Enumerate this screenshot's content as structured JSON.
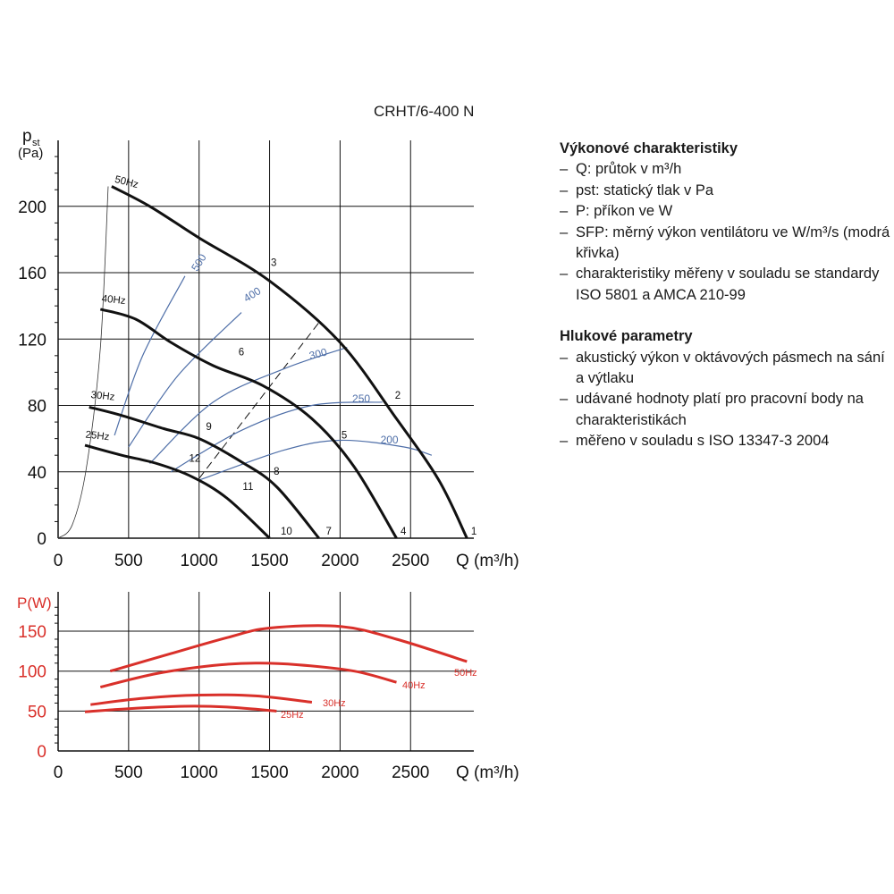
{
  "model": "CRHT/6-400 N",
  "info": {
    "perf_heading": "Výkonové charakteristiky",
    "perf_items": [
      "Q: průtok v m³/h",
      "pst: statický tlak v Pa",
      "P: příkon ve W",
      "SFP: měrný výkon ventilátoru ve W/m³/s (modrá křivka)",
      "charakteristiky měřeny v souladu se standardy ISO 5801 a AMCA 210-99"
    ],
    "noise_heading": "Hlukové parametry",
    "noise_items": [
      "akustický výkon v oktávových pásmech na sání a výtlaku",
      "udávané hodnoty platí pro pracovní body na charakteristikách",
      "měřeno v souladu s ISO 13347-3 2004"
    ]
  },
  "colors": {
    "fan_curve": "#111111",
    "sfp_curve": "#4f6fa8",
    "power_curve": "#d9302a",
    "axis": "#111111",
    "grid": "#111111"
  },
  "chart_data": [
    {
      "type": "line",
      "ylabel": "pst",
      "yunit": "(Pa)",
      "xlabel": "Q (m³/h)",
      "xlim": [
        0,
        3000
      ],
      "ylim": [
        0,
        240
      ],
      "xticks": [
        0,
        500,
        1000,
        1500,
        2000,
        2500
      ],
      "yticks": [
        0,
        40,
        80,
        120,
        160,
        200
      ],
      "grid": true,
      "series": [
        {
          "name": "50Hz",
          "kind": "fan",
          "points": [
            [
              380,
              212
            ],
            [
              650,
              200
            ],
            [
              1000,
              181
            ],
            [
              1500,
              155
            ],
            [
              2000,
              118
            ],
            [
              2400,
              72
            ],
            [
              2700,
              35
            ],
            [
              2900,
              0
            ]
          ]
        },
        {
          "name": "40Hz",
          "kind": "fan",
          "points": [
            [
              300,
              138
            ],
            [
              550,
              132
            ],
            [
              800,
              118
            ],
            [
              1100,
              104
            ],
            [
              1450,
              92
            ],
            [
              1800,
              72
            ],
            [
              2100,
              43
            ],
            [
              2400,
              0
            ]
          ]
        },
        {
          "name": "30Hz",
          "kind": "fan",
          "points": [
            [
              220,
              79
            ],
            [
              450,
              74
            ],
            [
              750,
              66
            ],
            [
              1000,
              60
            ],
            [
              1300,
              46
            ],
            [
              1550,
              31
            ],
            [
              1850,
              0
            ]
          ]
        },
        {
          "name": "25Hz",
          "kind": "fan",
          "points": [
            [
              190,
              56
            ],
            [
              450,
              50
            ],
            [
              700,
              45
            ],
            [
              950,
              37
            ],
            [
              1200,
              24
            ],
            [
              1500,
              0
            ]
          ]
        },
        {
          "name": "500",
          "kind": "sfp",
          "points": [
            [
              400,
              62
            ],
            [
              600,
              110
            ],
            [
              900,
              158
            ]
          ]
        },
        {
          "name": "400",
          "kind": "sfp",
          "points": [
            [
              500,
              55
            ],
            [
              850,
              98
            ],
            [
              1300,
              136
            ]
          ]
        },
        {
          "name": "300",
          "kind": "sfp",
          "points": [
            [
              650,
              45
            ],
            [
              1100,
              82
            ],
            [
              1600,
              102
            ],
            [
              2050,
              115
            ]
          ]
        },
        {
          "name": "250",
          "kind": "sfp",
          "points": [
            [
              800,
              40
            ],
            [
              1300,
              65
            ],
            [
              1800,
              80
            ],
            [
              2300,
              82
            ]
          ]
        },
        {
          "name": "200",
          "kind": "sfp",
          "points": [
            [
              1000,
              35
            ],
            [
              1600,
              53
            ],
            [
              2000,
              59
            ],
            [
              2450,
              55
            ],
            [
              2650,
              50
            ]
          ]
        }
      ],
      "system_curve": [
        [
          0,
          0
        ],
        [
          100,
          8
        ],
        [
          200,
          42
        ],
        [
          300,
          115
        ],
        [
          355,
          212
        ]
      ],
      "dashed_line": [
        [
          1000,
          36
        ],
        [
          1850,
          130
        ]
      ],
      "operating_points": [
        {
          "label": "1",
          "q": 2910,
          "p": 0
        },
        {
          "label": "2",
          "q": 2370,
          "p": 82
        },
        {
          "label": "3",
          "q": 1490,
          "p": 162
        },
        {
          "label": "4",
          "q": 2410,
          "p": 0
        },
        {
          "label": "5",
          "q": 1990,
          "p": 58
        },
        {
          "label": "6",
          "q": 1260,
          "p": 108
        },
        {
          "label": "7",
          "q": 1880,
          "p": 0
        },
        {
          "label": "8",
          "q": 1510,
          "p": 36
        },
        {
          "label": "9",
          "q": 1030,
          "p": 63
        },
        {
          "label": "10",
          "q": 1560,
          "p": 0
        },
        {
          "label": "11",
          "q": 1290,
          "p": 27
        },
        {
          "label": "12",
          "q": 910,
          "p": 44
        }
      ]
    },
    {
      "type": "line",
      "ylabel": "P(W)",
      "xlabel": "Q (m³/h)",
      "xlim": [
        0,
        3000
      ],
      "ylim": [
        0,
        190
      ],
      "xticks": [
        0,
        500,
        1000,
        1500,
        2000,
        2500
      ],
      "yticks": [
        0,
        50,
        100,
        150
      ],
      "grid": true,
      "series": [
        {
          "name": "50Hz",
          "points": [
            [
              370,
              100
            ],
            [
              800,
              122
            ],
            [
              1200,
              142
            ],
            [
              1500,
              154
            ],
            [
              2000,
              156
            ],
            [
              2400,
              140
            ],
            [
              2900,
              112
            ]
          ]
        },
        {
          "name": "40Hz",
          "points": [
            [
              300,
              80
            ],
            [
              700,
              97
            ],
            [
              1100,
              107
            ],
            [
              1400,
              110
            ],
            [
              1700,
              108
            ],
            [
              2100,
              100
            ],
            [
              2400,
              86
            ]
          ]
        },
        {
          "name": "30Hz",
          "points": [
            [
              230,
              58
            ],
            [
              600,
              66
            ],
            [
              1000,
              70
            ],
            [
              1400,
              69
            ],
            [
              1800,
              61
            ]
          ]
        },
        {
          "name": "25Hz",
          "points": [
            [
              190,
              49
            ],
            [
              500,
              53
            ],
            [
              900,
              56
            ],
            [
              1200,
              55
            ],
            [
              1550,
              50
            ]
          ]
        }
      ]
    }
  ]
}
